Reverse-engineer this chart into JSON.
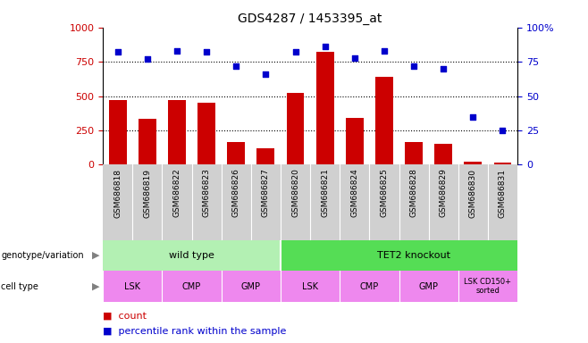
{
  "title": "GDS4287 / 1453395_at",
  "samples": [
    "GSM686818",
    "GSM686819",
    "GSM686822",
    "GSM686823",
    "GSM686826",
    "GSM686827",
    "GSM686820",
    "GSM686821",
    "GSM686824",
    "GSM686825",
    "GSM686828",
    "GSM686829",
    "GSM686830",
    "GSM686831"
  ],
  "counts": [
    470,
    335,
    470,
    450,
    165,
    120,
    520,
    820,
    340,
    640,
    165,
    150,
    20,
    15
  ],
  "percentiles": [
    82,
    77,
    83,
    82,
    72,
    66,
    82,
    86,
    78,
    83,
    72,
    70,
    35,
    25
  ],
  "bar_color": "#cc0000",
  "dot_color": "#0000cc",
  "ylim_left": [
    0,
    1000
  ],
  "ylim_right": [
    0,
    100
  ],
  "yticks_left": [
    0,
    250,
    500,
    750,
    1000
  ],
  "yticks_right": [
    0,
    25,
    50,
    75,
    100
  ],
  "grid_values": [
    250,
    500,
    750
  ],
  "genotype_labels": [
    "wild type",
    "TET2 knockout"
  ],
  "genotype_color_light": "#b3f0b3",
  "genotype_color_dark": "#55dd55",
  "cell_type_color": "#ee88ee",
  "cell_type_color_white": "#f8d8f8",
  "sample_bg_color": "#d0d0d0",
  "bar_color_left_axis": "#cc0000",
  "right_axis_color": "#0000cc",
  "title_fontsize": 10,
  "label_fontsize": 8,
  "sample_fontsize": 6.5,
  "row_fontsize": 8,
  "legend_fontsize": 8
}
